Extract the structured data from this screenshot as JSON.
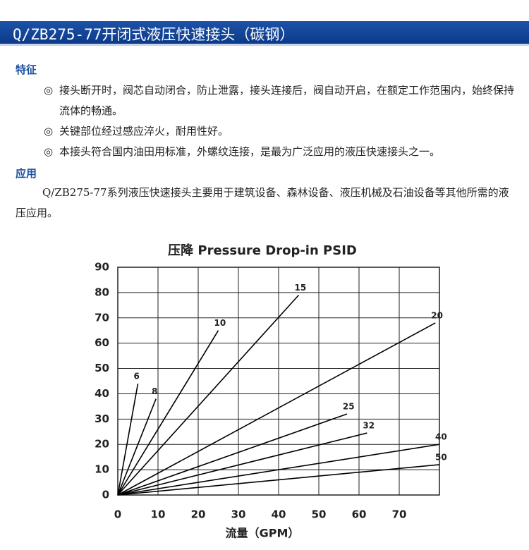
{
  "header": {
    "title": "Q/ZB275-77开闭式液压快速接头（碳钢）"
  },
  "features": {
    "title": "特征",
    "marker": "◎",
    "items": [
      "接头断开时，阀芯自动闭合，防止泄露，接头连接后，阀自动开启，在额定工作范围内，始终保持流体的畅通。",
      "关键部位经过感应淬火，耐用性好。",
      "本接头符合国内油田用标准，外螺纹连接，是最为广泛应用的液压快速接头之一。"
    ]
  },
  "application": {
    "title": "应用",
    "text": "Q/ZB275-77系列液压快速接头主要用于建筑设备、森林设备、液压机械及石油设备等其他所需的液压应用。"
  },
  "chart_data": {
    "type": "line",
    "title": "压降 Pressure Drop-in PSID",
    "x_label": "流量（GPM）",
    "xlim": [
      0,
      80
    ],
    "ylim": [
      0,
      90
    ],
    "xticks": [
      0,
      10,
      20,
      30,
      40,
      50,
      60,
      70
    ],
    "yticks": [
      0,
      10,
      20,
      30,
      40,
      50,
      60,
      70,
      80,
      90
    ],
    "grid": true,
    "color": "#000000",
    "series": [
      {
        "name": "6",
        "x": [
          0,
          5
        ],
        "values": [
          0,
          44
        ]
      },
      {
        "name": "8",
        "x": [
          0,
          9.5
        ],
        "values": [
          0,
          38
        ]
      },
      {
        "name": "10",
        "x": [
          0,
          25
        ],
        "values": [
          0,
          65
        ]
      },
      {
        "name": "15",
        "x": [
          0,
          45
        ],
        "values": [
          0,
          79
        ]
      },
      {
        "name": "20",
        "x": [
          0,
          79
        ],
        "values": [
          0,
          68
        ]
      },
      {
        "name": "25",
        "x": [
          0,
          57
        ],
        "values": [
          0,
          32
        ]
      },
      {
        "name": "32",
        "x": [
          0,
          62
        ],
        "values": [
          0,
          24.5
        ]
      },
      {
        "name": "40",
        "x": [
          0,
          80
        ],
        "values": [
          0,
          20
        ]
      },
      {
        "name": "50",
        "x": [
          0,
          80
        ],
        "values": [
          0,
          12
        ]
      }
    ]
  }
}
